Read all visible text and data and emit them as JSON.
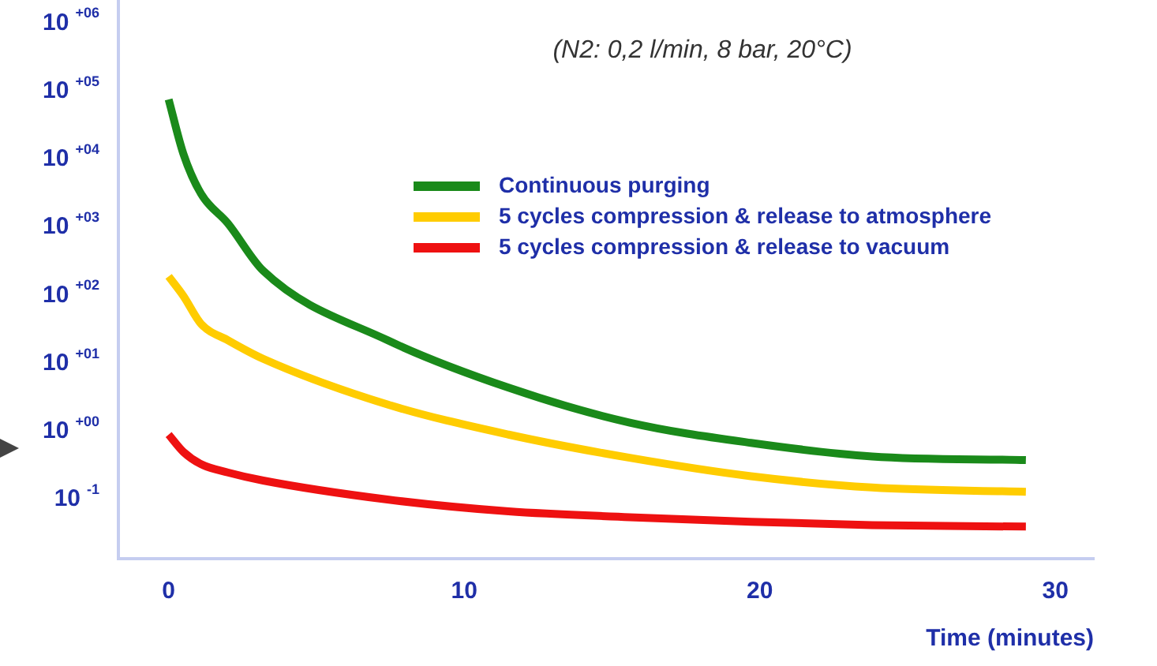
{
  "chart_data": {
    "type": "line",
    "title": "(N2: 0,2 l/min, 8 bar, 20°C)",
    "xlabel": "Time (minutes)",
    "log": "y",
    "xlim": [
      -1.7,
      31.3
    ],
    "xticks": [
      0,
      10,
      20,
      30
    ],
    "ylim": [
      0.0135,
      2200000
    ],
    "yticks": [
      {
        "value": 1000000,
        "label": "10$^{+06}$"
      },
      {
        "value": 100000,
        "label": "10$^{+05}$"
      },
      {
        "value": 10000,
        "label": "10$^{+04}$"
      },
      {
        "value": 1000,
        "label": "10$^{+03}$"
      },
      {
        "value": 100,
        "label": "10$^{+02}$"
      },
      {
        "value": 10,
        "label": "10$^{+01}$"
      },
      {
        "value": 1,
        "label": "10$^{+00}$"
      },
      {
        "value": 0.1,
        "label": "10$^{-1}$"
      }
    ],
    "grid": false,
    "legend": "top right",
    "marker": "none",
    "line_style": "solid",
    "x": [
      0,
      0.5,
      1.1,
      2,
      3.2,
      7.4,
      11.5,
      15.6,
      19.7,
      23.8,
      29
    ],
    "series": [
      {
        "name": "Continuous purging",
        "color": "#1a8a1a",
        "values": [
          76000,
          12000,
          3100,
          1150,
          230,
          22,
          4.4,
          1.35,
          0.68,
          0.43,
          0.38
        ]
      },
      {
        "name": "5 cycles compression & release to atmosphere",
        "color": "#ffcc00",
        "values": [
          190,
          98,
          38,
          22,
          11.7,
          2.5,
          0.9,
          0.41,
          0.22,
          0.15,
          0.13
        ]
      },
      {
        "name": "5 cycles compression & release to vacuum",
        "color": "#ee1111",
        "values": [
          0.9,
          0.5,
          0.33,
          0.25,
          0.19,
          0.1,
          0.067,
          0.055,
          0.047,
          0.042,
          0.04
        ]
      }
    ]
  }
}
